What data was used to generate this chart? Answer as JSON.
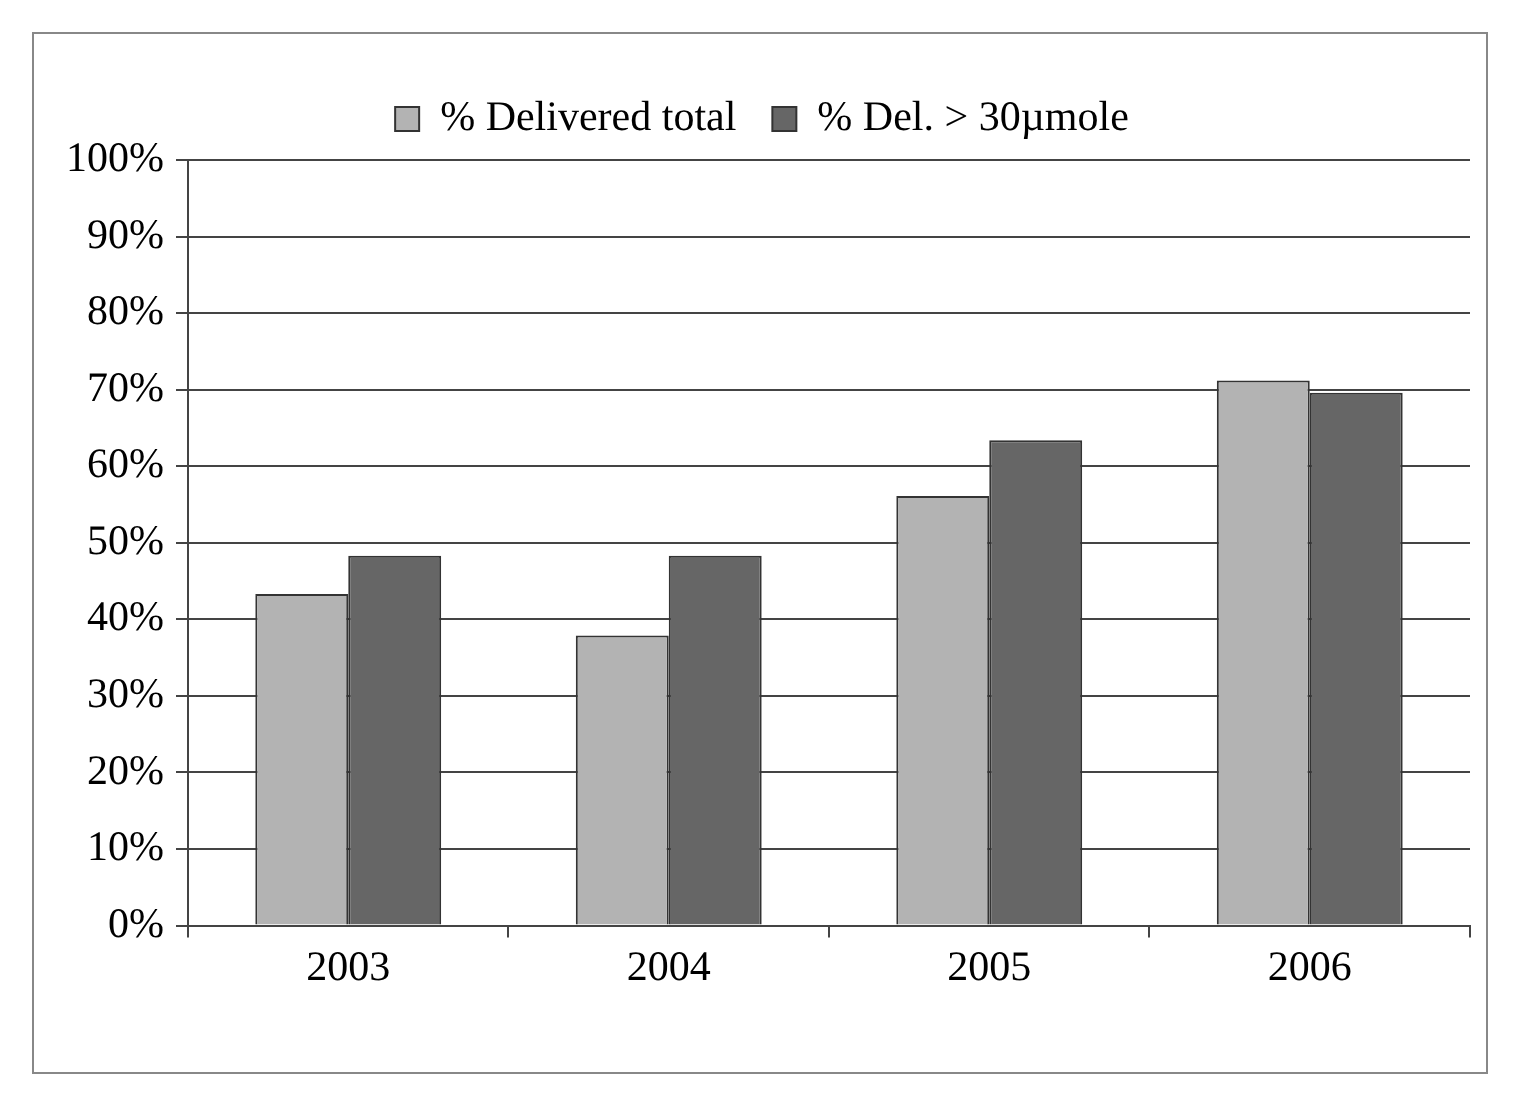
{
  "chart_data": {
    "type": "bar",
    "categories": [
      "2003",
      "2004",
      "2005",
      "2006"
    ],
    "series": [
      {
        "name": "% Delivered total",
        "color": "#b3b3b3",
        "values": [
          43.3,
          37.9,
          56.1,
          71.2
        ]
      },
      {
        "name": "% Del. > 30µmole",
        "color": "#666666",
        "values": [
          48.3,
          48.3,
          63.4,
          69.6
        ]
      }
    ],
    "ylim": [
      0,
      100
    ],
    "yticks": [
      {
        "value": 0,
        "label": "0%"
      },
      {
        "value": 10,
        "label": "10%"
      },
      {
        "value": 20,
        "label": "20%"
      },
      {
        "value": 30,
        "label": "30%"
      },
      {
        "value": 40,
        "label": "40%"
      },
      {
        "value": 50,
        "label": "50%"
      },
      {
        "value": 60,
        "label": "60%"
      },
      {
        "value": 70,
        "label": "70%"
      },
      {
        "value": 80,
        "label": "80%"
      },
      {
        "value": 90,
        "label": "90%"
      },
      {
        "value": 100,
        "label": "100%"
      }
    ],
    "grid": "y",
    "legend": "top"
  }
}
